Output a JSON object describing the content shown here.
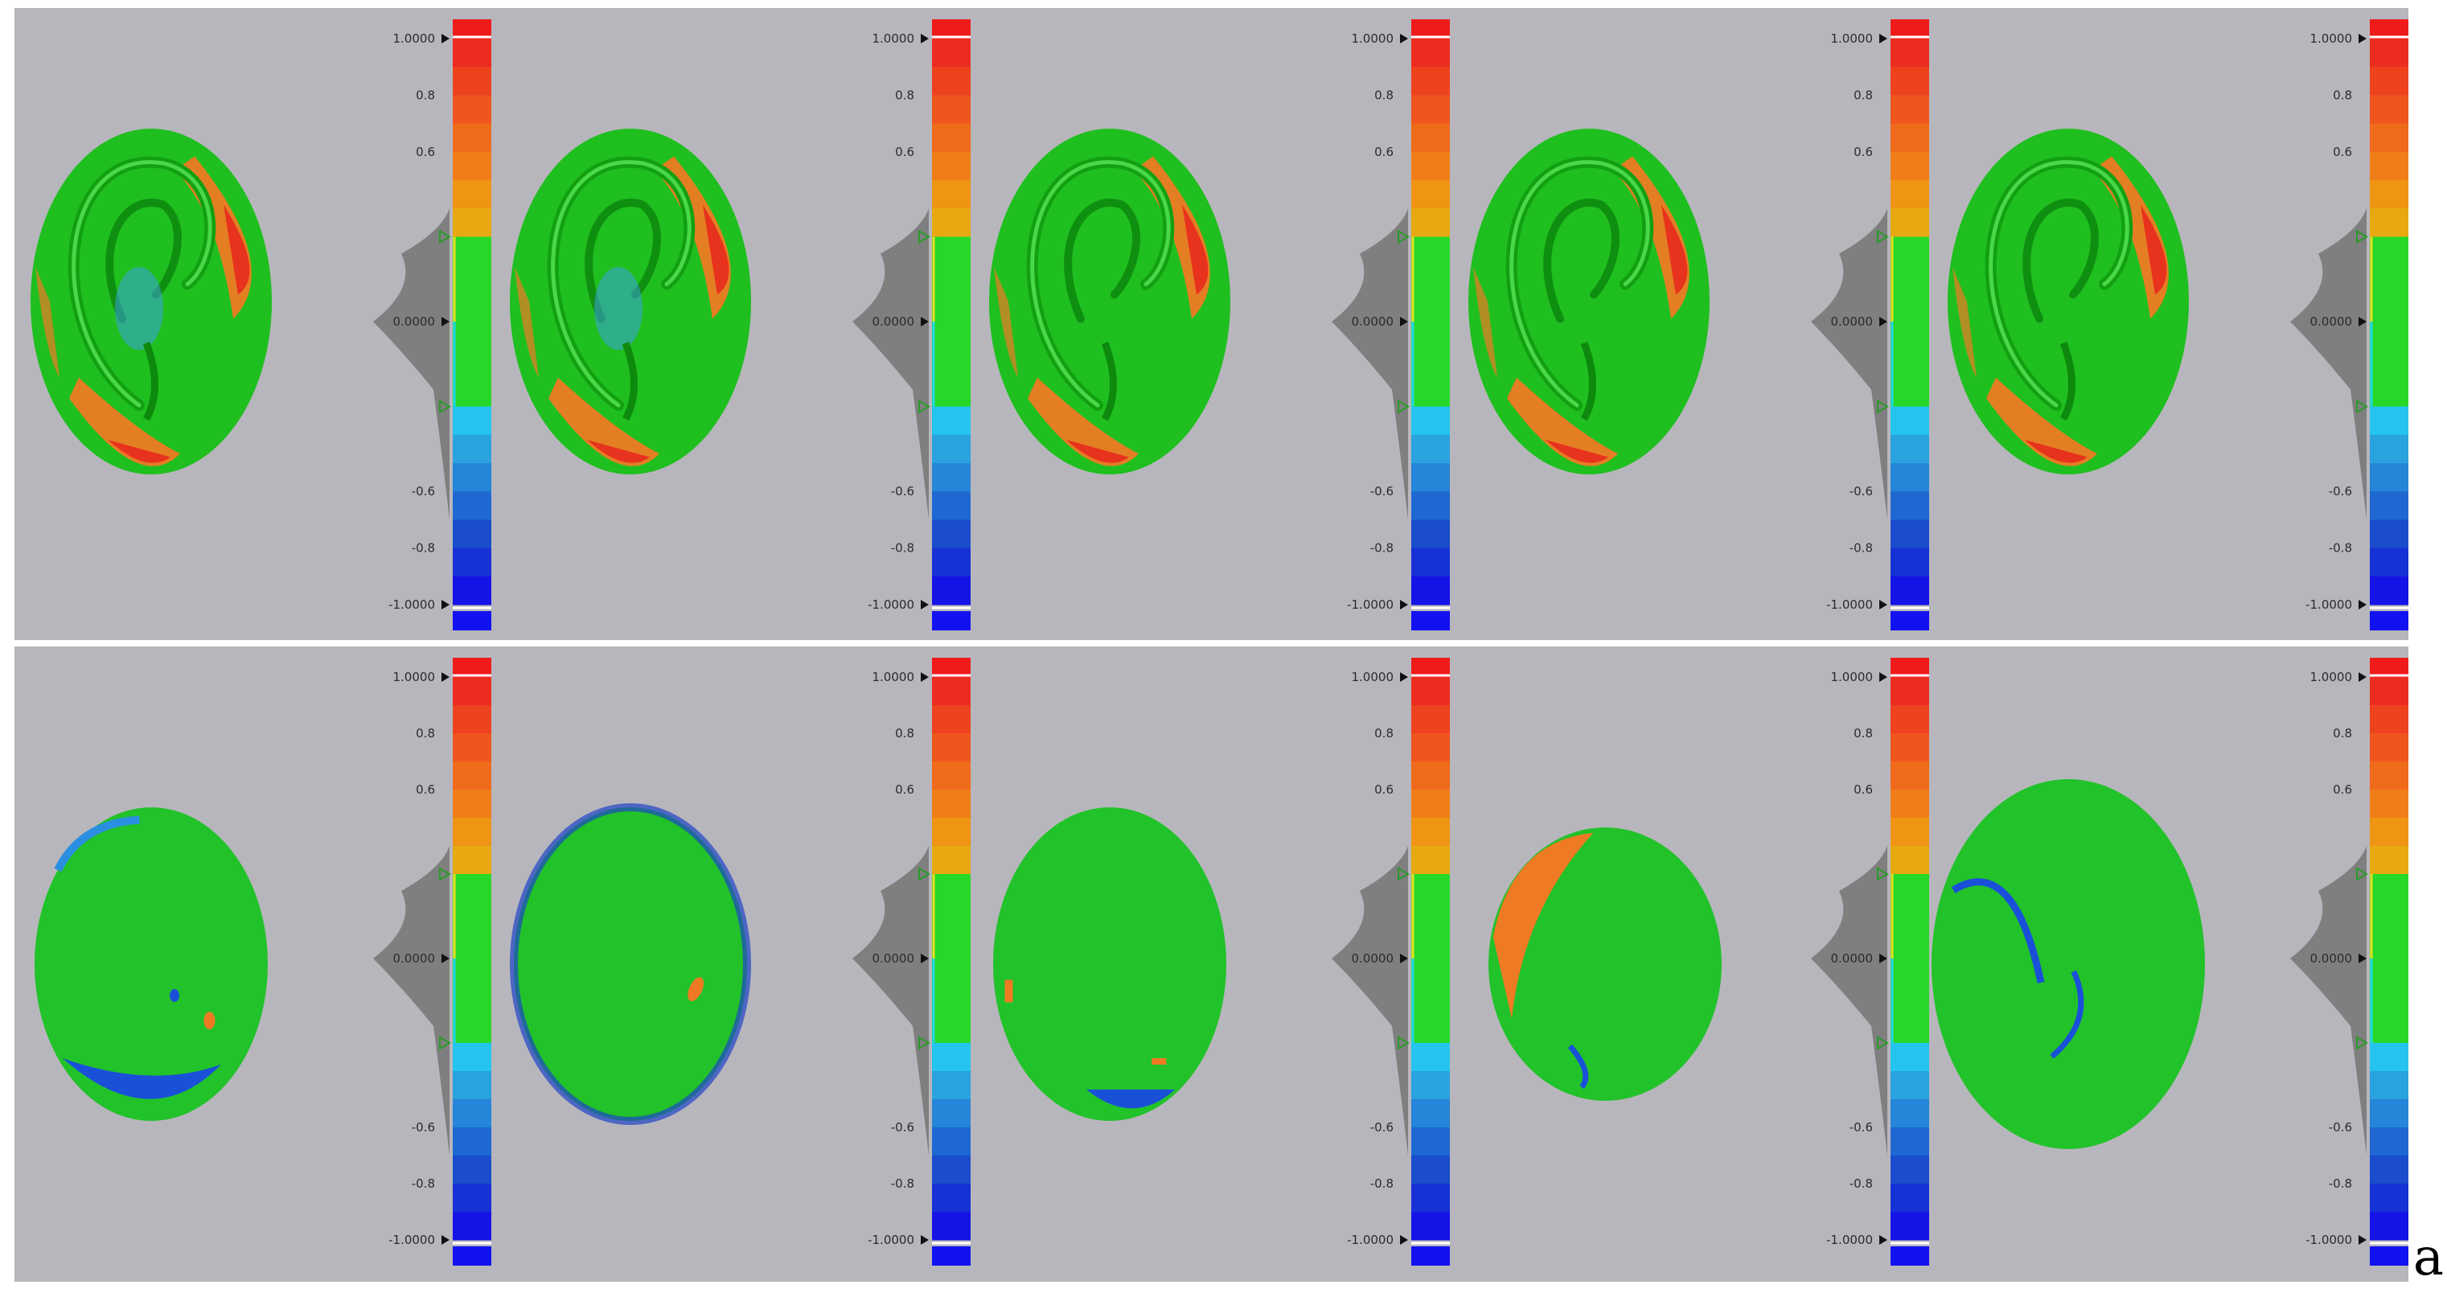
{
  "figure_label": "a",
  "colors": {
    "background_panel": "#b8b6bd",
    "figure_background": "#ffffff",
    "histogram": "#7f7f7f",
    "scale": [
      "#1414e6",
      "#1631d6",
      "#1a4ccc",
      "#1f68d2",
      "#2585d8",
      "#2aa2de",
      "#24c4ef",
      "#28d828",
      "#28d828",
      "#28d828",
      "#28d828",
      "#28d828",
      "#28d828",
      "#e7a90f",
      "#ef9413",
      "#f07e18",
      "#f06a1b",
      "#ef561d",
      "#ee421f",
      "#ec2c21"
    ],
    "cap_top": "#ef1b1b",
    "cap_bottom": "#1212f0",
    "mesh_green": "#1fbf1f",
    "mesh_orange": "#ef7a24",
    "mesh_red": "#e72a1e",
    "mesh_blue": "#1a50d8"
  },
  "scale_labels": {
    "max": "1.0000",
    "mid_upper": "0.8",
    "upper": "0.6",
    "zero": "0.0000",
    "lower": "-0.6",
    "mid_lower": "-0.8",
    "min": "-1.0000"
  },
  "rows": [
    {
      "row": "top",
      "panels": [
        {
          "mesh": "ear-lateral",
          "index": 1
        },
        {
          "mesh": "ear-lateral",
          "index": 2
        },
        {
          "mesh": "ear-lateral",
          "index": 3
        },
        {
          "mesh": "ear-lateral",
          "index": 4
        },
        {
          "mesh": "ear-lateral",
          "index": 5
        }
      ]
    },
    {
      "row": "bottom",
      "panels": [
        {
          "mesh": "ear-medial",
          "index": 1
        },
        {
          "mesh": "ear-medial",
          "index": 2
        },
        {
          "mesh": "ear-medial",
          "index": 3
        },
        {
          "mesh": "ear-medial",
          "index": 4
        },
        {
          "mesh": "ear-medial",
          "index": 5
        }
      ]
    }
  ]
}
